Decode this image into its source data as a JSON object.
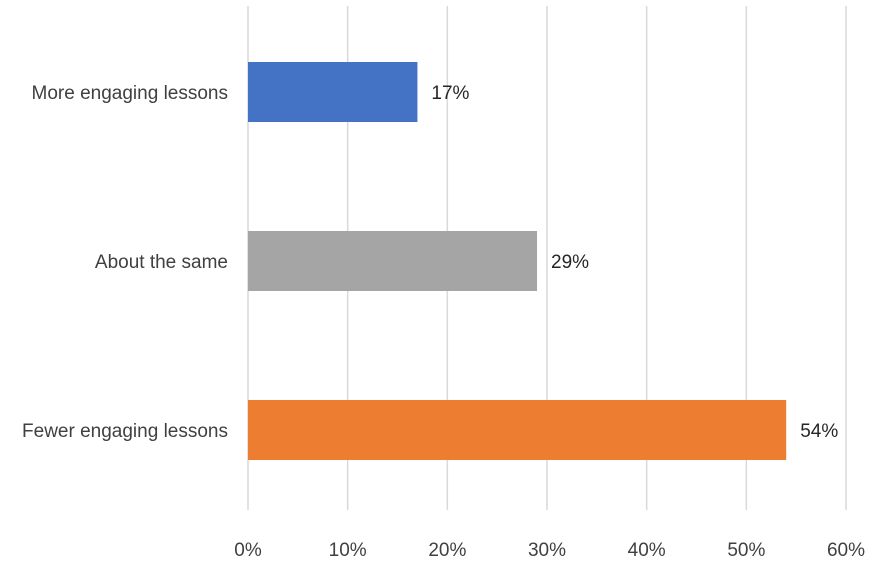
{
  "chart_data": {
    "type": "bar",
    "orientation": "horizontal",
    "title": "",
    "xlabel": "",
    "ylabel": "",
    "categories": [
      "More engaging lessons",
      "About the same",
      "Fewer engaging lessons"
    ],
    "values": [
      17,
      29,
      54
    ],
    "data_labels": [
      "17%",
      "29%",
      "54%"
    ],
    "bar_colors": [
      "#4472C4",
      "#A5A5A5",
      "#ED7D31"
    ],
    "xlim": [
      0,
      60
    ],
    "xticks": [
      0,
      10,
      20,
      30,
      40,
      50,
      60
    ],
    "xtick_labels": [
      "0%",
      "10%",
      "20%",
      "30%",
      "40%",
      "50%",
      "60%"
    ],
    "grid": "vertical",
    "legend": "none"
  }
}
